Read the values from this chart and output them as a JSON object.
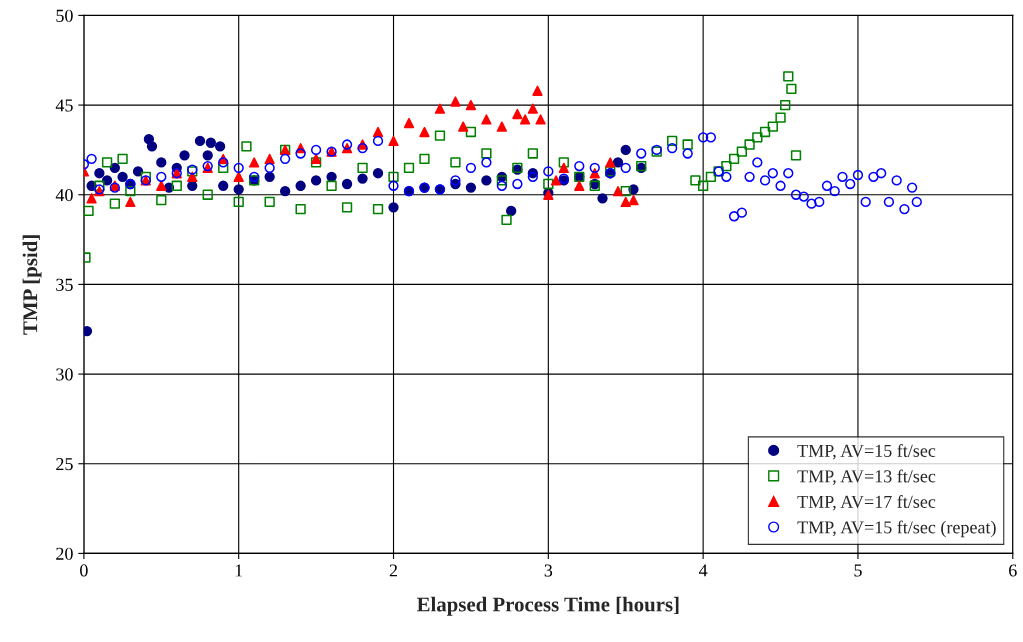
{
  "chart_data": {
    "type": "scatter",
    "xlabel": "Elapsed Process Time [hours]",
    "ylabel": "TMP [psid]",
    "xlim": [
      0,
      6
    ],
    "xticks": [
      0,
      1,
      2,
      3,
      4,
      5,
      6
    ],
    "ylim": [
      20,
      50
    ],
    "yticks": [
      20,
      25,
      30,
      35,
      40,
      45,
      50
    ],
    "grid": true,
    "legend": "bottom right",
    "series": [
      {
        "name": "TMP, AV=15 ft/sec",
        "color": "#000080",
        "marker": "circle",
        "x": [
          0.02,
          0.05,
          0.1,
          0.15,
          0.2,
          0.25,
          0.3,
          0.35,
          0.42,
          0.44,
          0.5,
          0.55,
          0.6,
          0.65,
          0.7,
          0.75,
          0.8,
          0.82,
          0.88,
          0.9,
          1.0,
          1.1,
          1.2,
          1.3,
          1.4,
          1.5,
          1.6,
          1.7,
          1.8,
          1.9,
          2.0,
          2.1,
          2.2,
          2.3,
          2.4,
          2.5,
          2.6,
          2.7,
          2.76,
          2.8,
          2.9,
          3.0,
          3.1,
          3.2,
          3.3,
          3.35,
          3.4,
          3.45,
          3.5,
          3.55,
          3.6
        ],
        "values": [
          32.4,
          40.5,
          41.2,
          40.8,
          41.5,
          41.0,
          40.6,
          41.3,
          43.1,
          42.7,
          41.8,
          40.4,
          41.5,
          42.2,
          40.5,
          43.0,
          42.2,
          42.9,
          42.7,
          40.5,
          40.3,
          40.8,
          41.0,
          40.2,
          40.5,
          40.8,
          41.0,
          40.6,
          40.9,
          41.2,
          39.3,
          40.2,
          40.4,
          40.3,
          40.6,
          40.4,
          40.8,
          41.0,
          39.1,
          41.4,
          41.2,
          40.1,
          40.8,
          41.0,
          40.6,
          39.8,
          41.2,
          41.8,
          42.5,
          40.3,
          41.5
        ]
      },
      {
        "name": "TMP, AV=13 ft/sec",
        "color": "#008000",
        "marker": "square",
        "x": [
          0.01,
          0.03,
          0.1,
          0.15,
          0.2,
          0.25,
          0.3,
          0.4,
          0.5,
          0.6,
          0.7,
          0.8,
          0.9,
          1.0,
          1.05,
          1.1,
          1.2,
          1.3,
          1.4,
          1.5,
          1.6,
          1.7,
          1.8,
          1.9,
          2.0,
          2.1,
          2.2,
          2.3,
          2.4,
          2.5,
          2.6,
          2.7,
          2.73,
          2.8,
          2.9,
          3.0,
          3.1,
          3.2,
          3.3,
          3.4,
          3.5,
          3.6,
          3.7,
          3.8,
          3.9,
          3.95,
          4.0,
          4.05,
          4.1,
          4.15,
          4.2,
          4.25,
          4.3,
          4.35,
          4.4,
          4.45,
          4.5,
          4.53,
          4.55,
          4.57,
          4.6
        ],
        "values": [
          36.5,
          39.1,
          40.5,
          41.8,
          39.5,
          42.0,
          40.2,
          41.0,
          39.7,
          40.5,
          41.3,
          40.0,
          41.5,
          39.6,
          42.7,
          40.8,
          39.6,
          42.5,
          39.2,
          41.8,
          40.5,
          39.3,
          41.5,
          39.2,
          41.0,
          41.5,
          42.0,
          43.3,
          41.8,
          43.5,
          42.3,
          40.8,
          38.6,
          41.5,
          42.3,
          40.6,
          41.8,
          41.0,
          40.5,
          41.3,
          40.2,
          41.6,
          42.4,
          43.0,
          42.8,
          40.8,
          40.5,
          41.0,
          41.3,
          41.6,
          42.0,
          42.4,
          42.8,
          43.2,
          43.5,
          43.8,
          44.3,
          45.0,
          46.6,
          45.9,
          42.2
        ]
      },
      {
        "name": "TMP, AV=17 ft/sec",
        "color": "#ff0000",
        "marker": "triangle",
        "x": [
          0.0,
          0.05,
          0.1,
          0.2,
          0.3,
          0.4,
          0.5,
          0.6,
          0.7,
          0.8,
          0.9,
          1.0,
          1.1,
          1.2,
          1.3,
          1.4,
          1.5,
          1.6,
          1.7,
          1.8,
          1.9,
          2.0,
          2.1,
          2.2,
          2.3,
          2.4,
          2.45,
          2.5,
          2.6,
          2.7,
          2.8,
          2.85,
          2.9,
          2.93,
          2.95,
          3.0,
          3.05,
          3.1,
          3.2,
          3.3,
          3.4,
          3.45,
          3.5,
          3.55
        ],
        "values": [
          41.3,
          39.8,
          40.2,
          40.5,
          39.6,
          40.8,
          40.5,
          41.2,
          41.0,
          41.5,
          42.0,
          41.0,
          41.8,
          42.0,
          42.5,
          42.6,
          42.0,
          42.4,
          42.6,
          42.8,
          43.5,
          43.0,
          44.0,
          43.5,
          44.8,
          45.2,
          43.8,
          45.0,
          44.2,
          43.8,
          44.5,
          44.2,
          44.8,
          45.8,
          44.2,
          40.0,
          40.8,
          41.5,
          40.5,
          41.2,
          41.8,
          40.2,
          39.6,
          39.7
        ]
      },
      {
        "name": "TMP, AV=15 ft/sec (repeat)",
        "color": "#0000ff",
        "marker": "circle",
        "x": [
          0.0,
          0.05,
          0.1,
          0.2,
          0.3,
          0.4,
          0.5,
          0.6,
          0.7,
          0.8,
          0.9,
          1.0,
          1.1,
          1.2,
          1.3,
          1.4,
          1.5,
          1.6,
          1.7,
          1.8,
          1.9,
          2.0,
          2.1,
          2.2,
          2.3,
          2.4,
          2.5,
          2.6,
          2.7,
          2.8,
          2.9,
          3.0,
          3.1,
          3.2,
          3.3,
          3.4,
          3.5,
          3.6,
          3.7,
          3.8,
          3.9,
          4.0,
          4.05,
          4.1,
          4.15,
          4.2,
          4.25,
          4.3,
          4.35,
          4.4,
          4.45,
          4.5,
          4.55,
          4.6,
          4.65,
          4.7,
          4.75,
          4.8,
          4.85,
          4.9,
          4.95,
          5.0,
          5.05,
          5.1,
          5.15,
          5.2,
          5.25,
          5.3,
          5.35,
          5.38
        ],
        "values": [
          41.7,
          42.0,
          40.3,
          40.4,
          40.6,
          40.8,
          41.0,
          41.2,
          41.4,
          41.6,
          41.8,
          41.5,
          41.0,
          41.5,
          42.0,
          42.3,
          42.5,
          42.4,
          42.8,
          42.6,
          43.0,
          40.5,
          40.2,
          40.4,
          40.3,
          40.8,
          41.5,
          41.8,
          40.5,
          40.6,
          41.0,
          41.3,
          40.9,
          41.6,
          41.5,
          41.2,
          41.5,
          42.3,
          42.5,
          42.6,
          42.3,
          43.2,
          43.2,
          41.3,
          41.0,
          38.8,
          39.0,
          41.0,
          41.8,
          40.8,
          41.2,
          40.5,
          41.2,
          40.0,
          39.9,
          39.5,
          39.6,
          40.5,
          40.2,
          41.0,
          40.6,
          41.1,
          39.6,
          41.0,
          41.2,
          39.6,
          40.8,
          39.2,
          40.4,
          39.6
        ]
      }
    ]
  }
}
